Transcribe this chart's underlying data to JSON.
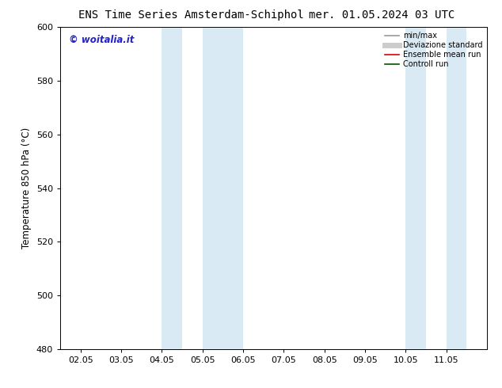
{
  "title_left": "ENS Time Series Amsterdam-Schiphol",
  "title_right": "mer. 01.05.2024 03 UTC",
  "ylabel": "Temperature 850 hPa (°C)",
  "ylim": [
    480,
    600
  ],
  "yticks": [
    480,
    500,
    520,
    540,
    560,
    580,
    600
  ],
  "xtick_labels": [
    "02.05",
    "03.05",
    "04.05",
    "05.05",
    "06.05",
    "07.05",
    "08.05",
    "09.05",
    "10.05",
    "11.05"
  ],
  "background_color": "#ffffff",
  "plot_bg_color": "#ffffff",
  "shaded_bands": [
    {
      "x_start": 3.0,
      "x_end": 3.5,
      "color": "#daeaf5"
    },
    {
      "x_start": 4.0,
      "x_end": 5.0,
      "color": "#daeaf5"
    },
    {
      "x_start": 9.0,
      "x_end": 9.5,
      "color": "#daeaf5"
    },
    {
      "x_start": 10.0,
      "x_end": 10.5,
      "color": "#daeaf5"
    }
  ],
  "watermark_text": "© woitalia.it",
  "watermark_color": "#2222cc",
  "legend_entries": [
    {
      "label": "min/max",
      "color": "#999999",
      "lw": 1.2,
      "style": "solid"
    },
    {
      "label": "Deviazione standard",
      "color": "#cccccc",
      "lw": 5,
      "style": "solid"
    },
    {
      "label": "Ensemble mean run",
      "color": "#dd0000",
      "lw": 1.2,
      "style": "solid"
    },
    {
      "label": "Controll run",
      "color": "#005500",
      "lw": 1.2,
      "style": "solid"
    }
  ],
  "tick_fontsize": 8,
  "label_fontsize": 8.5,
  "title_fontsize": 10,
  "xlim": [
    0.5,
    11.0
  ],
  "x_positions": [
    1,
    2,
    3,
    4,
    5,
    6,
    7,
    8,
    9,
    10
  ]
}
